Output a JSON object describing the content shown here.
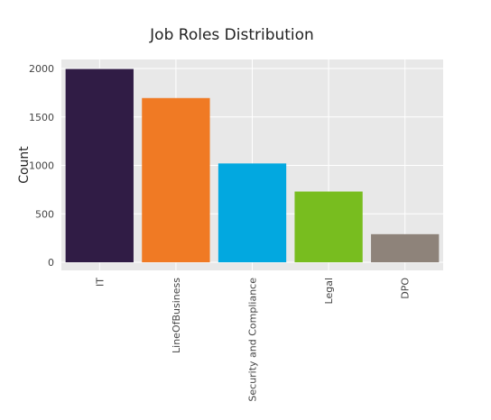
{
  "chart_data": {
    "type": "bar",
    "title": "Job Roles Distribution",
    "xlabel": "",
    "ylabel": "Count",
    "categories": [
      "IT",
      "LineOfBusiness",
      "Security and Compliance",
      "Legal",
      "DPO"
    ],
    "values": [
      1995,
      1695,
      1020,
      730,
      290
    ],
    "colors": [
      "#301c45",
      "#f07a24",
      "#02a8e0",
      "#78bd1f",
      "#8e837a"
    ],
    "y_ticks": [
      0,
      500,
      1000,
      1500,
      2000
    ],
    "y_tick_labels": [
      "0",
      "500",
      "1000",
      "1500",
      "2000"
    ],
    "ylim": [
      0,
      2100
    ],
    "grid": true,
    "background_color": "#e8e8e8",
    "legend": "none"
  }
}
